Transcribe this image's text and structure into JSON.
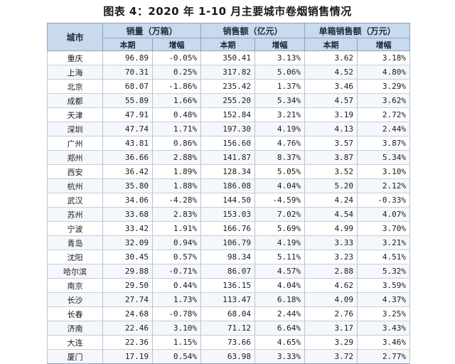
{
  "caption": "图表 4：2020 年 1-10 月主要城市卷烟销售情况",
  "header": {
    "city": "城市",
    "groups": [
      "销量（万箱）",
      "销售额（亿元）",
      "单箱销售额（万元）"
    ],
    "sub": [
      "本期",
      "增幅",
      "本期",
      "增幅",
      "本期",
      "增幅"
    ]
  },
  "rows": [
    {
      "city": "重庆",
      "vol": "96.89",
      "vol_g": "-0.05%",
      "sales": "350.41",
      "sales_g": "3.13%",
      "unit": "3.62",
      "unit_g": "3.18%"
    },
    {
      "city": "上海",
      "vol": "70.31",
      "vol_g": "0.25%",
      "sales": "317.82",
      "sales_g": "5.06%",
      "unit": "4.52",
      "unit_g": "4.80%"
    },
    {
      "city": "北京",
      "vol": "68.07",
      "vol_g": "-1.86%",
      "sales": "235.42",
      "sales_g": "1.37%",
      "unit": "3.46",
      "unit_g": "3.29%"
    },
    {
      "city": "成都",
      "vol": "55.89",
      "vol_g": "1.66%",
      "sales": "255.20",
      "sales_g": "5.34%",
      "unit": "4.57",
      "unit_g": "3.62%"
    },
    {
      "city": "天津",
      "vol": "47.91",
      "vol_g": "0.48%",
      "sales": "152.84",
      "sales_g": "3.21%",
      "unit": "3.19",
      "unit_g": "2.72%"
    },
    {
      "city": "深圳",
      "vol": "47.74",
      "vol_g": "1.71%",
      "sales": "197.30",
      "sales_g": "4.19%",
      "unit": "4.13",
      "unit_g": "2.44%"
    },
    {
      "city": "广州",
      "vol": "43.81",
      "vol_g": "0.86%",
      "sales": "156.60",
      "sales_g": "4.76%",
      "unit": "3.57",
      "unit_g": "3.87%"
    },
    {
      "city": "郑州",
      "vol": "36.66",
      "vol_g": "2.88%",
      "sales": "141.87",
      "sales_g": "8.37%",
      "unit": "3.87",
      "unit_g": "5.34%"
    },
    {
      "city": "西安",
      "vol": "36.42",
      "vol_g": "1.89%",
      "sales": "128.34",
      "sales_g": "5.05%",
      "unit": "3.52",
      "unit_g": "3.10%"
    },
    {
      "city": "杭州",
      "vol": "35.80",
      "vol_g": "1.88%",
      "sales": "186.08",
      "sales_g": "4.04%",
      "unit": "5.20",
      "unit_g": "2.12%"
    },
    {
      "city": "武汉",
      "vol": "34.06",
      "vol_g": "-4.28%",
      "sales": "144.50",
      "sales_g": "-4.59%",
      "unit": "4.24",
      "unit_g": "-0.33%"
    },
    {
      "city": "苏州",
      "vol": "33.68",
      "vol_g": "2.83%",
      "sales": "153.03",
      "sales_g": "7.02%",
      "unit": "4.54",
      "unit_g": "4.07%"
    },
    {
      "city": "宁波",
      "vol": "33.42",
      "vol_g": "1.91%",
      "sales": "166.76",
      "sales_g": "5.69%",
      "unit": "4.99",
      "unit_g": "3.70%"
    },
    {
      "city": "青岛",
      "vol": "32.09",
      "vol_g": "0.94%",
      "sales": "106.79",
      "sales_g": "4.19%",
      "unit": "3.33",
      "unit_g": "3.21%"
    },
    {
      "city": "沈阳",
      "vol": "30.45",
      "vol_g": "0.57%",
      "sales": "98.34",
      "sales_g": "5.11%",
      "unit": "3.23",
      "unit_g": "4.51%"
    },
    {
      "city": "哈尔滨",
      "vol": "29.88",
      "vol_g": "-0.71%",
      "sales": "86.07",
      "sales_g": "4.57%",
      "unit": "2.88",
      "unit_g": "5.32%"
    },
    {
      "city": "南京",
      "vol": "29.50",
      "vol_g": "0.44%",
      "sales": "136.15",
      "sales_g": "4.04%",
      "unit": "4.62",
      "unit_g": "3.59%"
    },
    {
      "city": "长沙",
      "vol": "27.74",
      "vol_g": "1.73%",
      "sales": "113.47",
      "sales_g": "6.18%",
      "unit": "4.09",
      "unit_g": "4.37%"
    },
    {
      "city": "长春",
      "vol": "24.68",
      "vol_g": "-0.78%",
      "sales": "68.04",
      "sales_g": "2.44%",
      "unit": "2.76",
      "unit_g": "3.25%"
    },
    {
      "city": "济南",
      "vol": "22.46",
      "vol_g": "3.10%",
      "sales": "71.12",
      "sales_g": "6.64%",
      "unit": "3.17",
      "unit_g": "3.43%"
    },
    {
      "city": "大连",
      "vol": "22.36",
      "vol_g": "1.15%",
      "sales": "73.66",
      "sales_g": "4.65%",
      "unit": "3.29",
      "unit_g": "3.46%"
    },
    {
      "city": "厦门",
      "vol": "17.19",
      "vol_g": "0.54%",
      "sales": "63.98",
      "sales_g": "3.33%",
      "unit": "3.72",
      "unit_g": "2.77%"
    }
  ]
}
